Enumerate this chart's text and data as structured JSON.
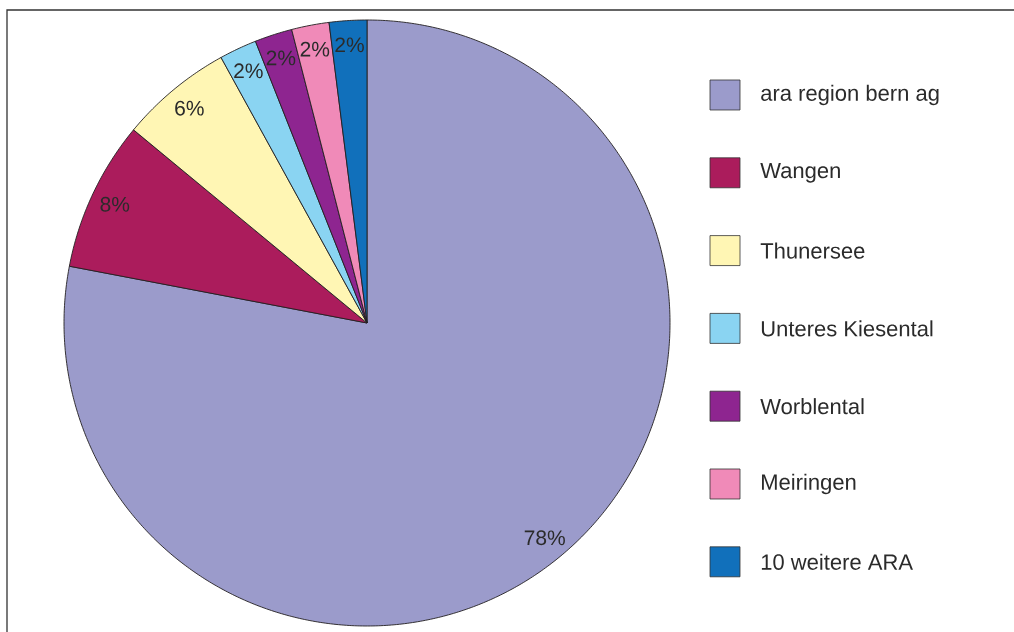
{
  "chart_data": {
    "type": "pie",
    "categories": [
      "ara region bern ag",
      "Wangen",
      "Thunersee",
      "Unteres Kiesental",
      "Worblental",
      "Meiringen",
      "10 weitere ARA"
    ],
    "values": [
      78,
      8,
      6,
      2,
      2,
      2,
      2
    ],
    "colors": [
      "#9b9bcb",
      "#ab1c5c",
      "#fff6b4",
      "#8ad4f2",
      "#8e2590",
      "#f08ab8",
      "#1170bb"
    ],
    "value_labels": [
      "78%",
      "8%",
      "6%",
      "2%",
      "2%",
      "2%",
      "2%"
    ],
    "legend": "right"
  }
}
